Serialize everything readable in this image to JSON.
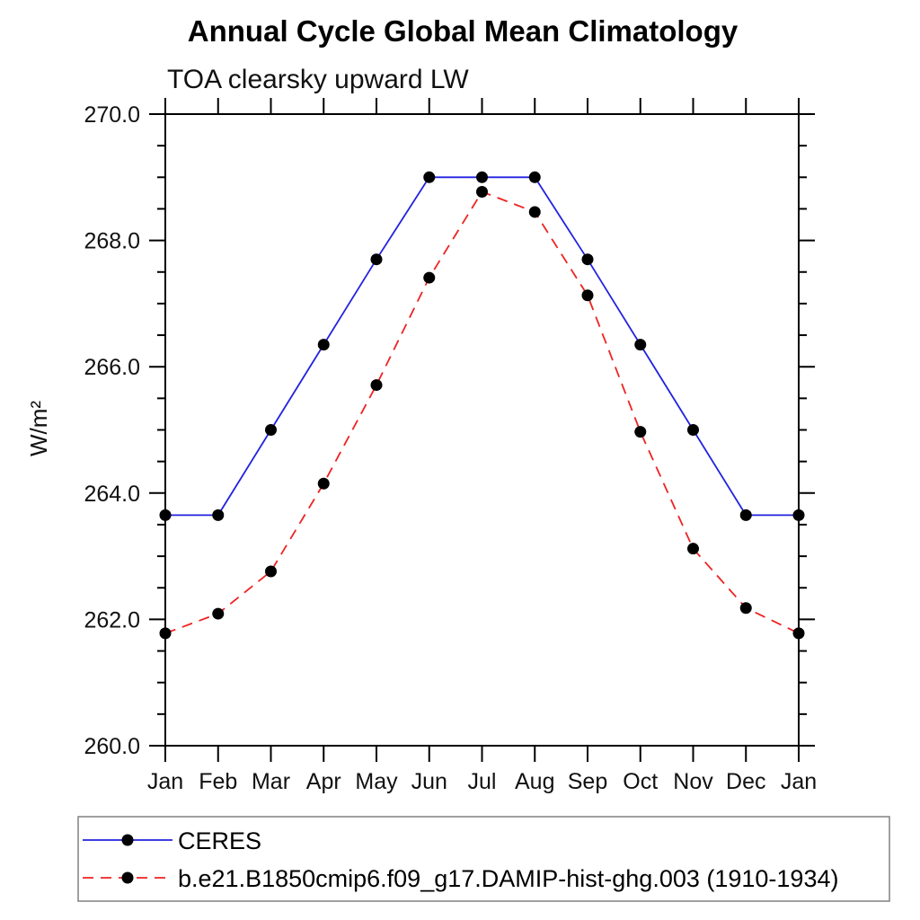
{
  "chart_data": {
    "type": "line",
    "title": "Annual Cycle Global Mean Climatology",
    "subtitle": "TOA clearsky upward LW",
    "ylabel": "W/m²",
    "xlabel": "",
    "categories": [
      "Jan",
      "Feb",
      "Mar",
      "Apr",
      "May",
      "Jun",
      "Jul",
      "Aug",
      "Sep",
      "Oct",
      "Nov",
      "Dec",
      "Jan"
    ],
    "ylim": [
      260.0,
      270.0
    ],
    "ytick_major": 2.0,
    "ytick_minor": 0.5,
    "ytick_labels": [
      "260.0",
      "262.0",
      "264.0",
      "266.0",
      "268.0",
      "270.0"
    ],
    "grid": false,
    "legend_position": "bottom",
    "axis_color": "#000000",
    "background_color": "#ffffff",
    "series": [
      {
        "name": "CERES",
        "color": "#2222e0",
        "line_style": "solid",
        "marker": "circle",
        "marker_color": "#000000",
        "values": [
          263.65,
          263.65,
          265.0,
          266.35,
          267.7,
          269.0,
          269.0,
          269.0,
          267.7,
          266.35,
          265.0,
          263.65,
          263.65
        ]
      },
      {
        "name": "b.e21.B1850cmip6.f09_g17.DAMIP-hist-ghg.003 (1910-1934)",
        "color": "#ee2222",
        "line_style": "dashed",
        "marker": "circle",
        "marker_color": "#000000",
        "values": [
          261.78,
          262.09,
          262.76,
          264.15,
          265.71,
          267.41,
          268.77,
          268.45,
          267.13,
          264.97,
          263.12,
          262.18,
          261.78
        ]
      }
    ]
  }
}
